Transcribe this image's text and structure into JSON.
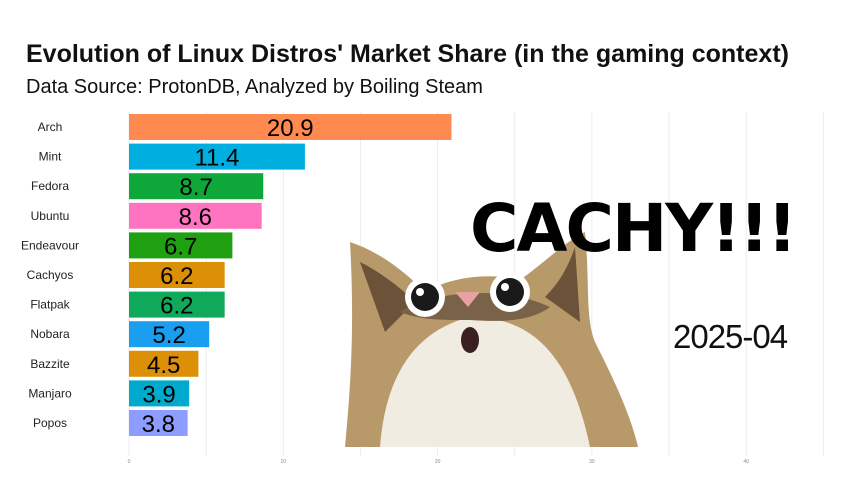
{
  "chart_data": {
    "type": "bar",
    "orientation": "horizontal",
    "title": "Evolution of Linux Distros' Market Share (in the gaming context)",
    "subtitle": "Data Source: ProtonDB, Analyzed by Boiling Steam",
    "categories": [
      "Arch",
      "Mint",
      "Fedora",
      "Ubuntu",
      "Endeavour",
      "Cachyos",
      "Flatpak",
      "Nobara",
      "Bazzite",
      "Manjaro",
      "Popos"
    ],
    "values": [
      20.9,
      11.4,
      8.7,
      8.6,
      6.7,
      6.2,
      6.2,
      5.2,
      4.5,
      3.9,
      3.8
    ],
    "value_labels": [
      "20.9",
      "11.4",
      "8.7",
      "8.6",
      "6.7",
      "6.2",
      "6.2",
      "5.2",
      "4.5",
      "3.9",
      "3.8"
    ],
    "colors": [
      "#ff8a50",
      "#00aee0",
      "#0ea83a",
      "#ff74c0",
      "#1fa010",
      "#dc9008",
      "#10a85a",
      "#1a9ef0",
      "#dc9008",
      "#00aacc",
      "#8c9cff"
    ],
    "xlim": [
      0,
      45
    ],
    "xticks": [
      0,
      10,
      20,
      30,
      40
    ],
    "xtick_labels": [
      "0",
      "10",
      "20",
      "30",
      "40"
    ],
    "grid": true,
    "period": "2025-04"
  },
  "overlay": {
    "caption": "CACHY!!!",
    "image": "surprised-cat"
  }
}
